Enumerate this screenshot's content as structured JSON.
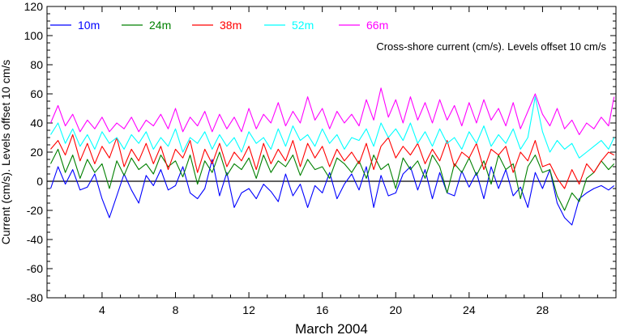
{
  "chart_data": {
    "type": "line",
    "title": "",
    "annotation": "Cross-shore current (cm/s). Levels offset 10 cm/s",
    "xlabel": "March 2004",
    "ylabel": "Current (cm/s). Levels offset 10 cm/s",
    "xlim": [
      1,
      32
    ],
    "ylim": [
      -80,
      120
    ],
    "x_ticks": [
      4,
      8,
      12,
      16,
      20,
      24,
      28
    ],
    "y_ticks": [
      -80,
      -60,
      -40,
      -20,
      0,
      20,
      40,
      60,
      80,
      100,
      120
    ],
    "zero_line": true,
    "grid": false,
    "legend_position": "top-left",
    "series": [
      {
        "name": "10m",
        "color": "#0000ff",
        "x": [
          1.2,
          1.6,
          2.0,
          2.4,
          2.8,
          3.2,
          3.6,
          4.0,
          4.4,
          4.8,
          5.2,
          5.6,
          6.0,
          6.4,
          6.8,
          7.2,
          7.6,
          8.0,
          8.4,
          8.8,
          9.2,
          9.6,
          10.0,
          10.4,
          10.8,
          11.2,
          11.6,
          12.0,
          12.4,
          12.8,
          13.2,
          13.6,
          14.0,
          14.4,
          14.8,
          15.2,
          15.6,
          16.0,
          16.4,
          16.8,
          17.2,
          17.6,
          18.0,
          18.4,
          18.8,
          19.2,
          19.6,
          20.0,
          20.4,
          20.8,
          21.2,
          21.6,
          22.0,
          22.4,
          22.8,
          23.2,
          23.6,
          24.0,
          24.4,
          24.8,
          25.2,
          25.6,
          26.0,
          26.4,
          26.8,
          27.2,
          27.6,
          28.0,
          28.4,
          28.8,
          29.2,
          29.6,
          30.0,
          30.4,
          30.8,
          31.2,
          31.6,
          31.9
        ],
        "values": [
          -5,
          10,
          -2,
          8,
          -6,
          -4,
          5,
          -12,
          -25,
          -10,
          5,
          -6,
          -15,
          4,
          -3,
          8,
          -6,
          -3,
          10,
          -8,
          -12,
          -5,
          15,
          -10,
          6,
          -18,
          -8,
          -5,
          -12,
          -2,
          -7,
          -14,
          5,
          -10,
          -2,
          -18,
          -3,
          -8,
          6,
          -12,
          -2,
          5,
          -6,
          10,
          -18,
          4,
          -10,
          -8,
          5,
          10,
          -6,
          8,
          -12,
          6,
          -8,
          -10,
          7,
          -4,
          6,
          -12,
          10,
          -5,
          8,
          -10,
          -4,
          -18,
          6,
          -5,
          8,
          -15,
          -25,
          -30,
          -12,
          -8,
          -5,
          -3,
          -6,
          -3
        ]
      },
      {
        "name": "24m",
        "color": "#008000",
        "x": [
          1.2,
          1.6,
          2.0,
          2.4,
          2.8,
          3.2,
          3.6,
          4.0,
          4.4,
          4.8,
          5.2,
          5.6,
          6.0,
          6.4,
          6.8,
          7.2,
          7.6,
          8.0,
          8.4,
          8.8,
          9.2,
          9.6,
          10.0,
          10.4,
          10.8,
          11.2,
          11.6,
          12.0,
          12.4,
          12.8,
          13.2,
          13.6,
          14.0,
          14.4,
          14.8,
          15.2,
          15.6,
          16.0,
          16.4,
          16.8,
          17.2,
          17.6,
          18.0,
          18.4,
          18.8,
          19.2,
          19.6,
          20.0,
          20.4,
          20.8,
          21.2,
          21.6,
          22.0,
          22.4,
          22.8,
          23.2,
          23.6,
          24.0,
          24.4,
          24.8,
          25.2,
          25.6,
          26.0,
          26.4,
          26.8,
          27.2,
          27.6,
          28.0,
          28.4,
          28.8,
          29.2,
          29.6,
          30.0,
          30.4,
          30.8,
          31.2,
          31.6,
          31.9
        ],
        "values": [
          12,
          22,
          6,
          18,
          2,
          15,
          6,
          12,
          -5,
          14,
          4,
          16,
          8,
          12,
          5,
          18,
          10,
          14,
          3,
          18,
          -2,
          14,
          6,
          20,
          4,
          12,
          8,
          16,
          2,
          18,
          6,
          14,
          10,
          18,
          4,
          15,
          8,
          10,
          2,
          16,
          12,
          6,
          14,
          2,
          18,
          8,
          12,
          -5,
          16,
          8,
          14,
          2,
          18,
          10,
          -8,
          12,
          6,
          16,
          4,
          14,
          -2,
          18,
          8,
          12,
          -12,
          10,
          18,
          6,
          8,
          -10,
          -20,
          -8,
          -14,
          2,
          6,
          14,
          8,
          12
        ]
      },
      {
        "name": "38m",
        "color": "#ff0000",
        "x": [
          1.2,
          1.6,
          2.0,
          2.4,
          2.8,
          3.2,
          3.6,
          4.0,
          4.4,
          4.8,
          5.2,
          5.6,
          6.0,
          6.4,
          6.8,
          7.2,
          7.6,
          8.0,
          8.4,
          8.8,
          9.2,
          9.6,
          10.0,
          10.4,
          10.8,
          11.2,
          11.6,
          12.0,
          12.4,
          12.8,
          13.2,
          13.6,
          14.0,
          14.4,
          14.8,
          15.2,
          15.6,
          16.0,
          16.4,
          16.8,
          17.2,
          17.6,
          18.0,
          18.4,
          18.8,
          19.2,
          19.6,
          20.0,
          20.4,
          20.8,
          21.2,
          21.6,
          22.0,
          22.4,
          22.8,
          23.2,
          23.6,
          24.0,
          24.4,
          24.8,
          25.2,
          25.6,
          26.0,
          26.4,
          26.8,
          27.2,
          27.6,
          28.0,
          28.4,
          28.8,
          29.2,
          29.6,
          30.0,
          30.4,
          30.8,
          31.2,
          31.6,
          31.9
        ],
        "values": [
          22,
          28,
          18,
          32,
          14,
          26,
          12,
          24,
          16,
          30,
          10,
          22,
          14,
          26,
          12,
          24,
          8,
          22,
          16,
          28,
          6,
          22,
          12,
          26,
          10,
          20,
          14,
          24,
          8,
          26,
          12,
          22,
          14,
          28,
          10,
          26,
          16,
          24,
          10,
          22,
          14,
          20,
          12,
          26,
          8,
          24,
          30,
          16,
          24,
          18,
          26,
          12,
          22,
          14,
          28,
          10,
          20,
          16,
          26,
          8,
          22,
          18,
          24,
          6,
          20,
          14,
          28,
          10,
          12,
          2,
          -5,
          8,
          -2,
          12,
          6,
          14,
          20,
          18
        ]
      },
      {
        "name": "52m",
        "color": "#00ffff",
        "x": [
          1.2,
          1.6,
          2.0,
          2.4,
          2.8,
          3.2,
          3.6,
          4.0,
          4.4,
          4.8,
          5.2,
          5.6,
          6.0,
          6.4,
          6.8,
          7.2,
          7.6,
          8.0,
          8.4,
          8.8,
          9.2,
          9.6,
          10.0,
          10.4,
          10.8,
          11.2,
          11.6,
          12.0,
          12.4,
          12.8,
          13.2,
          13.6,
          14.0,
          14.4,
          14.8,
          15.2,
          15.6,
          16.0,
          16.4,
          16.8,
          17.2,
          17.6,
          18.0,
          18.4,
          18.8,
          19.2,
          19.6,
          20.0,
          20.4,
          20.8,
          21.2,
          21.6,
          22.0,
          22.4,
          22.8,
          23.2,
          23.6,
          24.0,
          24.4,
          24.8,
          25.2,
          25.6,
          26.0,
          26.4,
          26.8,
          27.2,
          27.6,
          28.0,
          28.4,
          28.8,
          29.2,
          29.6,
          30.0,
          30.4,
          30.8,
          31.2,
          31.6,
          31.9
        ],
        "values": [
          32,
          40,
          26,
          36,
          24,
          32,
          22,
          34,
          26,
          30,
          22,
          32,
          26,
          34,
          22,
          30,
          24,
          36,
          20,
          30,
          26,
          34,
          22,
          32,
          24,
          30,
          20,
          34,
          26,
          30,
          22,
          36,
          24,
          38,
          28,
          32,
          24,
          36,
          26,
          32,
          22,
          30,
          28,
          36,
          24,
          40,
          30,
          36,
          28,
          40,
          26,
          34,
          24,
          36,
          26,
          30,
          22,
          34,
          26,
          38,
          24,
          32,
          26,
          36,
          22,
          30,
          58,
          34,
          20,
          28,
          22,
          26,
          16,
          20,
          24,
          28,
          22,
          30
        ]
      },
      {
        "name": "66m",
        "color": "#ff00ff",
        "x": [
          1.2,
          1.6,
          2.0,
          2.4,
          2.8,
          3.2,
          3.6,
          4.0,
          4.4,
          4.8,
          5.2,
          5.6,
          6.0,
          6.4,
          6.8,
          7.2,
          7.6,
          8.0,
          8.4,
          8.8,
          9.2,
          9.6,
          10.0,
          10.4,
          10.8,
          11.2,
          11.6,
          12.0,
          12.4,
          12.8,
          13.2,
          13.6,
          14.0,
          14.4,
          14.8,
          15.2,
          15.6,
          16.0,
          16.4,
          16.8,
          17.2,
          17.6,
          18.0,
          18.4,
          18.8,
          19.2,
          19.6,
          20.0,
          20.4,
          20.8,
          21.2,
          21.6,
          22.0,
          22.4,
          22.8,
          23.2,
          23.6,
          24.0,
          24.4,
          24.8,
          25.2,
          25.6,
          26.0,
          26.4,
          26.8,
          27.2,
          27.6,
          28.0,
          28.4,
          28.8,
          29.2,
          29.6,
          30.0,
          30.4,
          30.8,
          31.2,
          31.6,
          31.9
        ],
        "values": [
          40,
          52,
          38,
          46,
          34,
          42,
          36,
          44,
          34,
          40,
          36,
          44,
          34,
          42,
          38,
          46,
          36,
          50,
          34,
          44,
          38,
          48,
          34,
          46,
          36,
          44,
          34,
          50,
          36,
          46,
          40,
          54,
          38,
          48,
          40,
          58,
          42,
          50,
          36,
          48,
          40,
          46,
          38,
          56,
          42,
          64,
          44,
          56,
          40,
          58,
          42,
          54,
          40,
          56,
          42,
          52,
          38,
          54,
          40,
          56,
          42,
          50,
          38,
          54,
          36,
          48,
          60,
          46,
          38,
          50,
          36,
          42,
          32,
          40,
          36,
          44,
          38,
          58
        ]
      }
    ]
  }
}
